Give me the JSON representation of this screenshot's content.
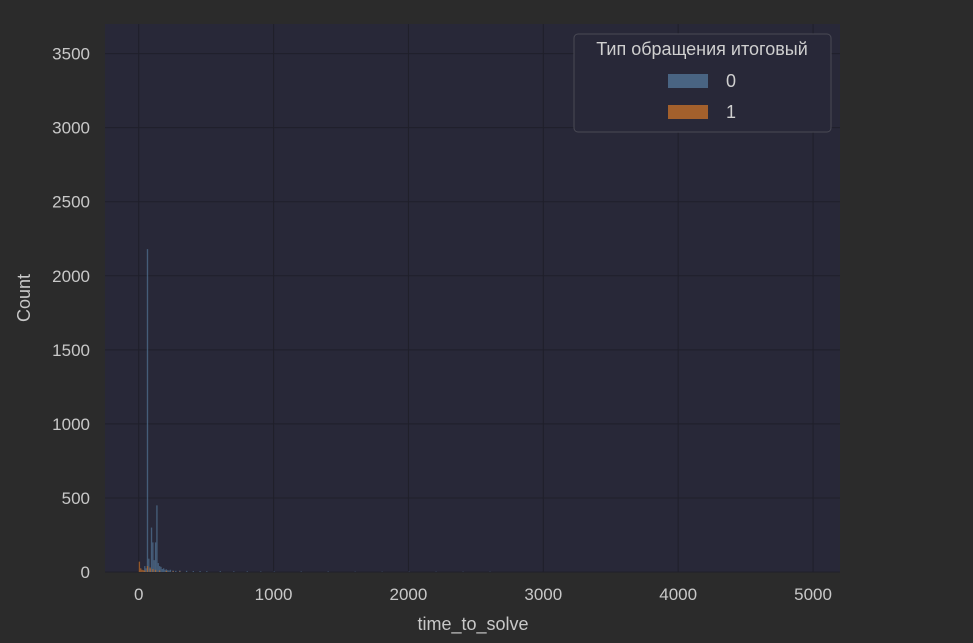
{
  "colors": {
    "page_background": "#2b2b2b",
    "plot_background": "#282838",
    "grid": "#1f1f2a",
    "text": "#c8c8c8",
    "series_0": "#4f6f8f",
    "series_1": "#b86a2a"
  },
  "chart_data": {
    "type": "bar",
    "title": "",
    "xlabel": "time_to_solve",
    "ylabel": "Count",
    "xlim": [
      -250,
      5200
    ],
    "ylim": [
      0,
      3700
    ],
    "xticks": [
      0,
      1000,
      2000,
      3000,
      4000,
      5000
    ],
    "yticks": [
      0,
      500,
      1000,
      1500,
      2000,
      2500,
      3000,
      3500
    ],
    "grid": true,
    "bin_width": 10,
    "legend": {
      "title": "Тип обращения итоговый",
      "placement": "top-right",
      "entries": [
        "0",
        "1"
      ]
    },
    "series": [
      {
        "name": "0",
        "color": "#4f6f8f",
        "x": [
          40,
          50,
          60,
          70,
          80,
          90,
          100,
          110,
          120,
          130,
          140,
          150,
          160,
          170,
          180,
          190,
          200,
          210,
          220,
          230,
          250,
          270,
          300,
          350,
          400,
          450,
          500,
          600,
          700,
          800,
          900,
          1000,
          1200,
          1400,
          1600,
          1800,
          2000,
          2200,
          2400,
          2600
        ],
        "values": [
          40,
          25,
          2180,
          90,
          20,
          300,
          200,
          80,
          200,
          450,
          60,
          40,
          35,
          20,
          25,
          15,
          18,
          12,
          10,
          15,
          10,
          8,
          10,
          8,
          6,
          6,
          5,
          5,
          4,
          4,
          3,
          3,
          3,
          3,
          2,
          2,
          2,
          2,
          2,
          2
        ]
      },
      {
        "name": "1",
        "color": "#b86a2a",
        "x": [
          0,
          10,
          20,
          30,
          40,
          60,
          80,
          100,
          120,
          150,
          200,
          250,
          300
        ],
        "values": [
          70,
          25,
          15,
          12,
          10,
          40,
          30,
          20,
          15,
          10,
          8,
          5,
          4
        ]
      }
    ]
  }
}
